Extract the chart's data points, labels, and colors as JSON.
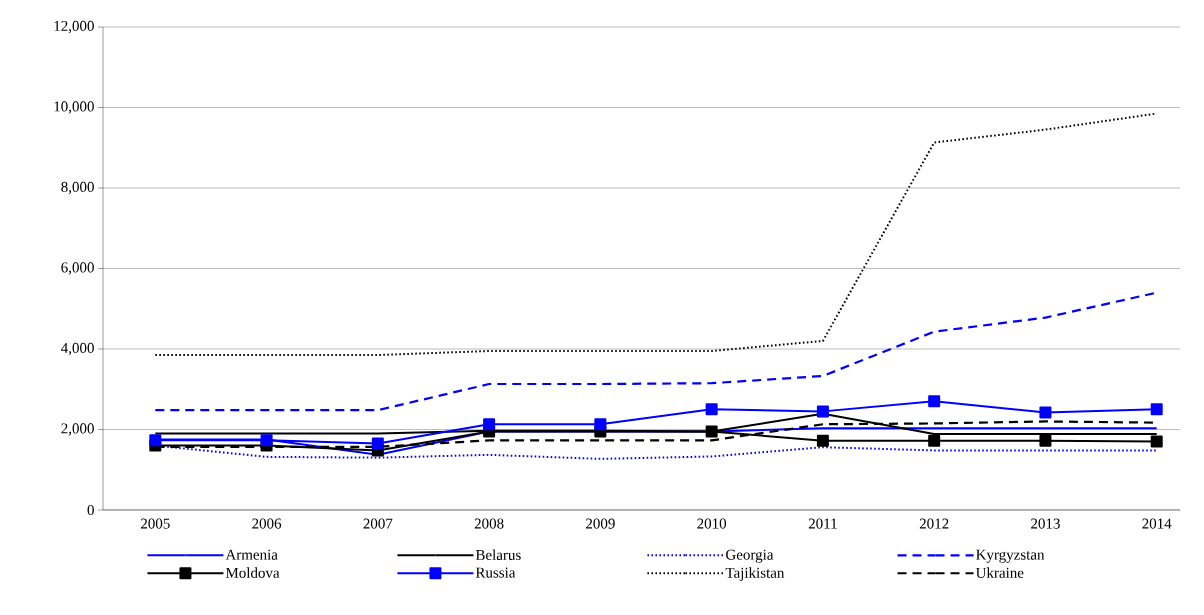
{
  "chart_data": {
    "type": "line",
    "categories": [
      "2005",
      "2006",
      "2007",
      "2008",
      "2009",
      "2010",
      "2011",
      "2012",
      "2013",
      "2014"
    ],
    "series": [
      {
        "name": "Armenia",
        "color": "#0000ff",
        "line_style": "solid",
        "marker": "none",
        "values": [
          1750,
          1750,
          1370,
          1950,
          1950,
          1950,
          2030,
          2030,
          2030,
          2030
        ]
      },
      {
        "name": "Belarus",
        "color": "#000000",
        "line_style": "solid",
        "marker": "none",
        "values": [
          1900,
          1900,
          1900,
          1970,
          1970,
          1950,
          2390,
          1890,
          1890,
          1890
        ]
      },
      {
        "name": "Georgia",
        "color": "#0000ff",
        "line_style": "dotted",
        "marker": "none",
        "values": [
          1600,
          1320,
          1300,
          1370,
          1270,
          1330,
          1560,
          1480,
          1480,
          1480
        ]
      },
      {
        "name": "Kyrgyzstan",
        "color": "#0000ff",
        "line_style": "dashed",
        "marker": "none",
        "values": [
          2480,
          2480,
          2480,
          3130,
          3130,
          3150,
          3330,
          4430,
          4780,
          5400
        ]
      },
      {
        "name": "Moldova",
        "color": "#000000",
        "line_style": "solid",
        "marker": "square",
        "values": [
          1600,
          1600,
          1480,
          1950,
          1950,
          1950,
          1720,
          1720,
          1720,
          1700
        ]
      },
      {
        "name": "Russia",
        "color": "#0000ff",
        "line_style": "solid",
        "marker": "square",
        "values": [
          1730,
          1730,
          1650,
          2130,
          2130,
          2500,
          2450,
          2700,
          2420,
          2500
        ]
      },
      {
        "name": "Tajikistan",
        "color": "#000000",
        "line_style": "dotted",
        "marker": "none",
        "values": [
          3850,
          3850,
          3850,
          3950,
          3950,
          3950,
          4200,
          9130,
          9450,
          9850
        ]
      },
      {
        "name": "Ukraine",
        "color": "#000000",
        "line_style": "dashed",
        "marker": "none",
        "values": [
          1570,
          1570,
          1570,
          1730,
          1730,
          1730,
          2130,
          2150,
          2200,
          2170
        ]
      }
    ],
    "ylim": [
      0,
      12000
    ],
    "yticks": [
      0,
      {
        "value": 2000,
        "label": "2,000"
      },
      {
        "value": 4000,
        "label": "4,000"
      },
      {
        "value": 6000,
        "label": "6,000"
      },
      {
        "value": 8000,
        "label": "8,000"
      },
      {
        "value": 10000,
        "label": "10,000"
      },
      {
        "value": 12000,
        "label": "12,000"
      }
    ],
    "grid": "y",
    "legend": "bottom"
  }
}
